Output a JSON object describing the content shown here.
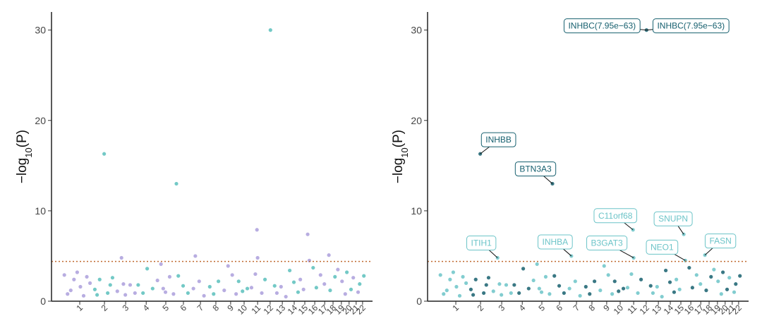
{
  "chart_data": [
    {
      "type": "scatter",
      "ylabel_parts": [
        "−log",
        "10",
        "(P)"
      ],
      "xlim": [
        0,
        100
      ],
      "ylim": [
        0,
        32
      ],
      "yticks": [
        0,
        10,
        20,
        30
      ],
      "hline": 4.4,
      "hline_color": "#c0692f",
      "xticks": [
        {
          "value": 8.8,
          "label": "1"
        },
        {
          "value": 16.5,
          "label": "2"
        },
        {
          "value": 23.1,
          "label": "3"
        },
        {
          "value": 29.5,
          "label": "4"
        },
        {
          "value": 35.6,
          "label": "5"
        },
        {
          "value": 41.1,
          "label": "6"
        },
        {
          "value": 46.4,
          "label": "7"
        },
        {
          "value": 51.2,
          "label": "8"
        },
        {
          "value": 55.8,
          "label": "9"
        },
        {
          "value": 60.0,
          "label": "10"
        },
        {
          "value": 64.2,
          "label": "11"
        },
        {
          "value": 68.1,
          "label": "12"
        },
        {
          "value": 71.9,
          "label": "13"
        },
        {
          "value": 75.6,
          "label": "14"
        },
        {
          "value": 78.9,
          "label": "15"
        },
        {
          "value": 82.0,
          "label": "16"
        },
        {
          "value": 85.1,
          "label": "17"
        },
        {
          "value": 87.7,
          "label": "18"
        },
        {
          "value": 90.3,
          "label": "19"
        },
        {
          "value": 92.7,
          "label": "20"
        },
        {
          "value": 94.9,
          "label": "21"
        },
        {
          "value": 96.9,
          "label": "22"
        }
      ],
      "series": [
        {
          "color": "#ac9fdc",
          "x": [
            4,
            5,
            6,
            7,
            8,
            9,
            10,
            11,
            12,
            20.5,
            21.8,
            22.4,
            23,
            24.5,
            26,
            33,
            34.1,
            34.8,
            35.5,
            36.8,
            38,
            44.2,
            44.8,
            46,
            47.5,
            53.8,
            55,
            56.3,
            57.5,
            62.3,
            63.5,
            64.0,
            64.2,
            65.5,
            70.2,
            71.5,
            73,
            77.5,
            78.5,
            79.8,
            80.3,
            83.8,
            85,
            86.4,
            89.2,
            90.5,
            91.5,
            94,
            95.5
          ],
          "y": [
            2.9,
            0.8,
            1.2,
            2.4,
            3.2,
            1.6,
            0.6,
            2.7,
            2.0,
            1.1,
            4.8,
            1.9,
            0.7,
            1.8,
            0.9,
            2.3,
            4.1,
            1.4,
            1.0,
            2.7,
            0.8,
            1.4,
            5.0,
            2.2,
            0.6,
            1.2,
            3.9,
            2.9,
            0.8,
            1.5,
            3.0,
            7.9,
            4.8,
            0.9,
            0.9,
            1.6,
            0.5,
            2.4,
            1.3,
            7.4,
            4.5,
            2.9,
            1.9,
            5.1,
            3.5,
            2.2,
            0.8,
            2.6,
            1.0
          ]
        },
        {
          "color": "#5bbfbc",
          "x": [
            13.5,
            14.2,
            15,
            16.4,
            17.5,
            18.3,
            19,
            27,
            28.5,
            29.8,
            31.5,
            38.9,
            39.5,
            41,
            42.5,
            49.3,
            50.5,
            52,
            58.3,
            59.5,
            61,
            66.5,
            68.2,
            69.5,
            74.2,
            75.5,
            76.8,
            81.5,
            82.5,
            86.8,
            88.3,
            92,
            93.3,
            96,
            97.3
          ],
          "y": [
            1.3,
            0.7,
            2.4,
            16.3,
            0.9,
            1.8,
            2.6,
            1.8,
            0.9,
            3.6,
            1.4,
            13.0,
            2.8,
            1.7,
            0.9,
            1.6,
            0.8,
            2.2,
            2.2,
            1.1,
            1.4,
            2.4,
            30.0,
            1.7,
            3.4,
            2.1,
            1.0,
            3.7,
            1.5,
            1.2,
            2.7,
            3.2,
            1.3,
            1.9,
            2.8
          ]
        }
      ]
    },
    {
      "type": "scatter",
      "ylabel_parts": [
        "−log",
        "10",
        "(P)"
      ],
      "xlim": [
        0,
        100
      ],
      "ylim": [
        0,
        32
      ],
      "yticks": [
        0,
        10,
        20,
        30
      ],
      "hline": 4.4,
      "hline_color": "#c0692f",
      "xticks": [
        {
          "value": 8.8,
          "label": "1"
        },
        {
          "value": 16.5,
          "label": "2"
        },
        {
          "value": 23.1,
          "label": "3"
        },
        {
          "value": 29.5,
          "label": "4"
        },
        {
          "value": 35.6,
          "label": "5"
        },
        {
          "value": 41.1,
          "label": "6"
        },
        {
          "value": 46.4,
          "label": "7"
        },
        {
          "value": 51.2,
          "label": "8"
        },
        {
          "value": 55.8,
          "label": "9"
        },
        {
          "value": 60.0,
          "label": "10"
        },
        {
          "value": 64.2,
          "label": "11"
        },
        {
          "value": 68.1,
          "label": "12"
        },
        {
          "value": 71.9,
          "label": "13"
        },
        {
          "value": 75.6,
          "label": "14"
        },
        {
          "value": 78.9,
          "label": "15"
        },
        {
          "value": 82.0,
          "label": "16"
        },
        {
          "value": 85.1,
          "label": "17"
        },
        {
          "value": 87.7,
          "label": "18"
        },
        {
          "value": 90.3,
          "label": "19"
        },
        {
          "value": 92.7,
          "label": "20"
        },
        {
          "value": 94.9,
          "label": "21"
        },
        {
          "value": 96.9,
          "label": "22"
        }
      ],
      "series": [
        {
          "color": "#6cc4c8",
          "x": [
            4,
            5,
            6,
            7,
            8,
            9,
            10,
            11,
            12,
            20.5,
            21.8,
            22.4,
            23,
            24.5,
            26,
            33,
            34.1,
            34.8,
            35.5,
            36.8,
            38,
            44.2,
            44.8,
            46,
            47.5,
            53.8,
            55,
            56.3,
            57.5,
            62.3,
            63.5,
            64.0,
            64.2,
            65.5,
            70.2,
            71.5,
            73,
            77.5,
            78.5,
            79.8,
            80.3,
            83.8,
            85,
            86.4,
            89.2,
            90.5,
            91.5,
            94,
            95.5
          ],
          "y": [
            2.9,
            0.8,
            1.2,
            2.4,
            3.2,
            1.6,
            0.6,
            2.7,
            2.0,
            1.1,
            4.8,
            1.9,
            0.7,
            1.8,
            0.9,
            2.3,
            4.1,
            1.4,
            1.0,
            2.7,
            0.8,
            1.4,
            5.0,
            2.2,
            0.6,
            1.2,
            3.9,
            2.9,
            0.8,
            1.5,
            3.0,
            7.9,
            4.8,
            0.9,
            0.9,
            1.6,
            0.5,
            2.4,
            1.3,
            7.4,
            4.5,
            2.9,
            1.9,
            5.1,
            3.5,
            2.2,
            0.8,
            2.6,
            1.0
          ]
        },
        {
          "color": "#17606f",
          "x": [
            13.5,
            14.2,
            15,
            16.4,
            17.5,
            18.3,
            19,
            27,
            28.5,
            29.8,
            31.5,
            38.9,
            39.5,
            41,
            42.5,
            49.3,
            50.5,
            52,
            58.3,
            59.5,
            61,
            66.5,
            68.2,
            69.5,
            74.2,
            75.5,
            76.8,
            81.5,
            82.5,
            86.8,
            88.3,
            92,
            93.3,
            96,
            97.3
          ],
          "y": [
            1.3,
            0.7,
            2.4,
            16.3,
            0.9,
            1.8,
            2.6,
            1.8,
            0.9,
            3.6,
            1.4,
            13.0,
            2.8,
            1.7,
            0.9,
            1.6,
            0.8,
            2.2,
            2.2,
            1.1,
            1.4,
            2.4,
            30.0,
            1.7,
            3.4,
            2.1,
            1.0,
            3.7,
            1.5,
            1.2,
            2.7,
            3.2,
            1.3,
            1.9,
            2.8
          ]
        }
      ],
      "annotations": [
        {
          "text": "INHBC(7.95e−63)",
          "x": 68.2,
          "y": 30.0,
          "color": "#17606f"
        },
        {
          "text": "INHBC(7.95e−63)",
          "x": 68.2,
          "y": 30.0,
          "color": "#17606f"
        },
        {
          "text": "INHBB",
          "x": 16.4,
          "y": 16.3,
          "color": "#17606f"
        },
        {
          "text": "BTN3A3",
          "x": 38.9,
          "y": 13.0,
          "color": "#17606f"
        },
        {
          "text": "C11orf68",
          "x": 64.0,
          "y": 7.9,
          "color": "#6cc4c8"
        },
        {
          "text": "SNUPN",
          "x": 79.8,
          "y": 7.4,
          "color": "#6cc4c8"
        },
        {
          "text": "ITIH1",
          "x": 21.8,
          "y": 4.8,
          "color": "#6cc4c8"
        },
        {
          "text": "INHBA",
          "x": 44.8,
          "y": 5.0,
          "color": "#6cc4c8"
        },
        {
          "text": "B3GAT3",
          "x": 64.2,
          "y": 4.8,
          "color": "#6cc4c8"
        },
        {
          "text": "NEO1",
          "x": 80.3,
          "y": 4.5,
          "color": "#6cc4c8"
        },
        {
          "text": "FASN",
          "x": 86.4,
          "y": 5.1,
          "color": "#6cc4c8"
        }
      ]
    }
  ]
}
